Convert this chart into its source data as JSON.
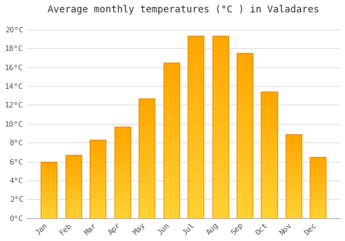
{
  "title": "Average monthly temperatures (°C ) in Valadares",
  "months": [
    "Jan",
    "Feb",
    "Mar",
    "Apr",
    "May",
    "Jun",
    "Jul",
    "Aug",
    "Sep",
    "Oct",
    "Nov",
    "Dec"
  ],
  "values": [
    6.0,
    6.7,
    8.3,
    9.7,
    12.7,
    16.5,
    19.3,
    19.3,
    17.5,
    13.4,
    8.9,
    6.5
  ],
  "bar_color_top": "#FFA500",
  "bar_color_bottom": "#FFD040",
  "bar_edge_color": "#E08000",
  "ylim": [
    0,
    21
  ],
  "yticks": [
    0,
    2,
    4,
    6,
    8,
    10,
    12,
    14,
    16,
    18,
    20
  ],
  "background_color": "#FFFFFF",
  "grid_color": "#DDDDDD",
  "title_fontsize": 10,
  "tick_fontsize": 8,
  "font_family": "monospace"
}
